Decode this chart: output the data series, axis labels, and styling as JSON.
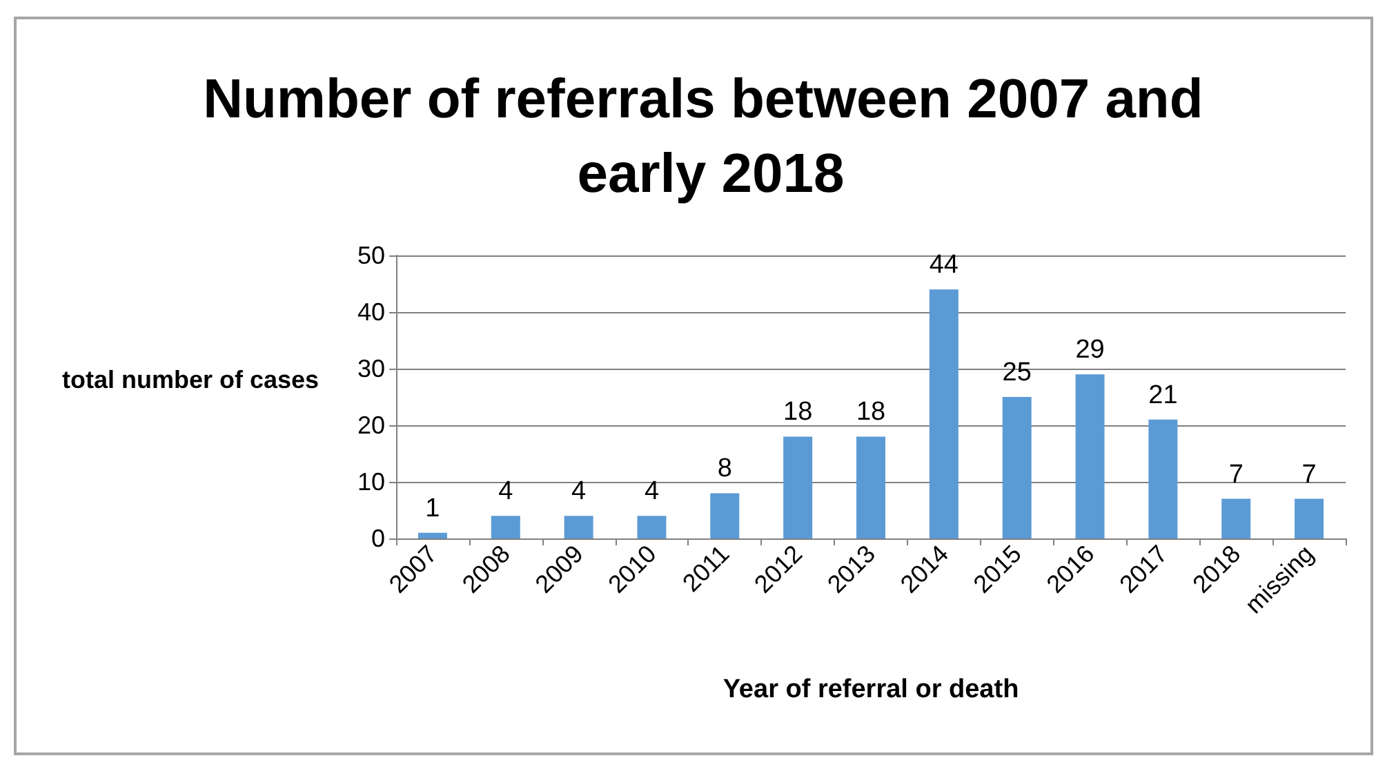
{
  "chart_data": {
    "type": "bar",
    "title": "Number of referrals between 2007 and early 2018",
    "xlabel": "Year of referral or death",
    "ylabel": "total number of cases",
    "categories": [
      "2007",
      "2008",
      "2009",
      "2010",
      "2011",
      "2012",
      "2013",
      "2014",
      "2015",
      "2016",
      "2017",
      "2018",
      "missing"
    ],
    "values": [
      1,
      4,
      4,
      4,
      8,
      18,
      18,
      44,
      25,
      29,
      21,
      7,
      7
    ],
    "color": "#5b9bd5",
    "ylim": [
      0,
      50
    ],
    "yticks": [
      0,
      10,
      20,
      30,
      40,
      50
    ],
    "grid": "y",
    "data_labels": true
  }
}
